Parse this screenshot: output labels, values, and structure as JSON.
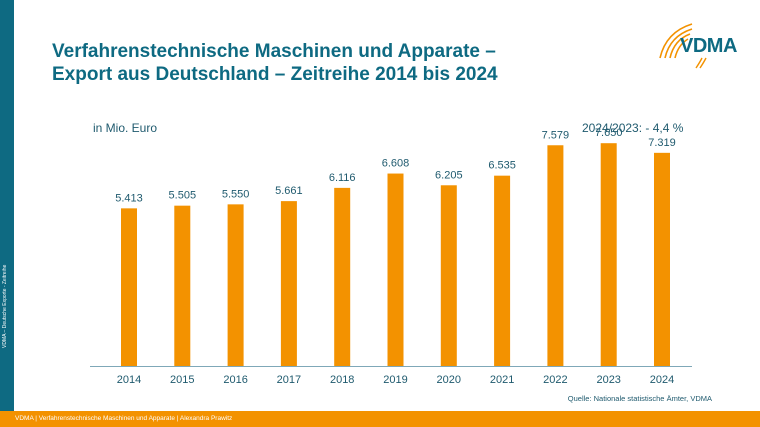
{
  "slide": {
    "title_line1": "Verfahrenstechnische Maschinen und Apparate –",
    "title_line2": "Export aus Deutschland – Zeitreihe 2014 bis 2024",
    "logo_text": "VDMA",
    "side_text": "VDMA – Deutsche Exporte - Zeitreihe",
    "footer_text": "VDMA | Verfahrenstechnische Maschinen und Apparate | Alexandra Prawitz",
    "source": "Quelle: Nationale statistische Ämter, VDMA",
    "colors": {
      "brand_blue": "#0e6a82",
      "bar_orange": "#f39200",
      "text": "#1f5a6e"
    }
  },
  "chart_data": {
    "type": "bar",
    "title": "Verfahrenstechnische Maschinen und Apparate – Export aus Deutschland – Zeitreihe 2014 bis 2024",
    "ylabel": "in Mio. Euro",
    "xlabel": "",
    "annotation": "2024/2023: - 4,4 %",
    "categories": [
      "2014",
      "2015",
      "2016",
      "2017",
      "2018",
      "2019",
      "2020",
      "2021",
      "2022",
      "2023",
      "2024"
    ],
    "values": [
      5413,
      5505,
      5550,
      5661,
      6116,
      6608,
      6205,
      6535,
      7579,
      7650,
      7319
    ],
    "value_labels": [
      "5.413",
      "5.505",
      "5.550",
      "5.661",
      "6.116",
      "6.608",
      "6.205",
      "6.535",
      "7.579",
      "7.650",
      "7.319"
    ],
    "ylim": [
      0,
      8000
    ],
    "grid": false,
    "legend": "none"
  }
}
